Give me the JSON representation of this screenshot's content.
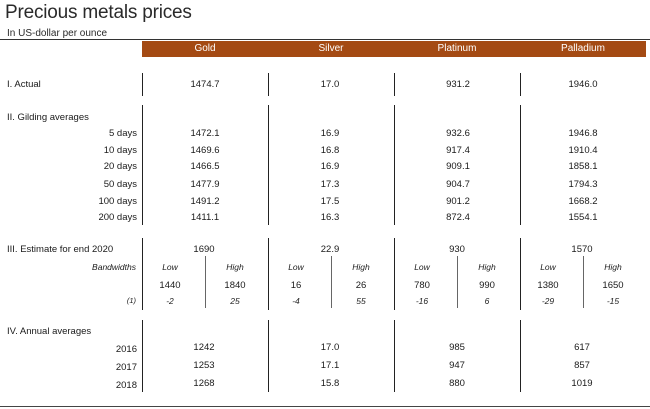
{
  "title": "Precious metals prices",
  "subtitle": "In US-dollar per ounce",
  "columns": [
    "Gold",
    "Silver",
    "Platinum",
    "Palladium"
  ],
  "sections": {
    "actual": {
      "label": "I. Actual",
      "values": [
        "1474.7",
        "17.0",
        "931.2",
        "1946.0"
      ]
    },
    "gliding": {
      "label": "II. Gilding averages",
      "rows": [
        {
          "label": "5 days",
          "values": [
            "1472.1",
            "16.9",
            "932.6",
            "1946.8"
          ]
        },
        {
          "label": "10 days",
          "values": [
            "1469.6",
            "16.8",
            "917.4",
            "1910.4"
          ]
        },
        {
          "label": "20 days",
          "values": [
            "1466.5",
            "16.9",
            "909.1",
            "1858.1"
          ]
        },
        {
          "label": "50 days",
          "values": [
            "1477.9",
            "17.3",
            "904.7",
            "1794.3"
          ]
        },
        {
          "label": "100 days",
          "values": [
            "1491.2",
            "17.5",
            "901.2",
            "1668.2"
          ]
        },
        {
          "label": "200 days",
          "values": [
            "1411.1",
            "16.3",
            "872.4",
            "1554.1"
          ]
        }
      ]
    },
    "estimate": {
      "label": "III. Estimate for end 2020",
      "values": [
        "1690",
        "22.9",
        "930",
        "1570"
      ],
      "bandwidths_label": "Bandwidths",
      "low_label": "Low",
      "high_label": "High",
      "low": [
        "1440",
        "16",
        "780",
        "1380"
      ],
      "high": [
        "1840",
        "26",
        "990",
        "1650"
      ],
      "note_label": "(1)",
      "low_change": [
        "-2",
        "-4",
        "-16",
        "-29"
      ],
      "high_change": [
        "25",
        "55",
        "6",
        "-15"
      ]
    },
    "annual": {
      "label": "IV. Annual averages",
      "rows": [
        {
          "label": "2016",
          "values": [
            "1242",
            "17.0",
            "985",
            "617"
          ]
        },
        {
          "label": "2017",
          "values": [
            "1253",
            "17.1",
            "947",
            "857"
          ]
        },
        {
          "label": "2018",
          "values": [
            "1268",
            "15.8",
            "880",
            "1019"
          ]
        }
      ]
    }
  }
}
